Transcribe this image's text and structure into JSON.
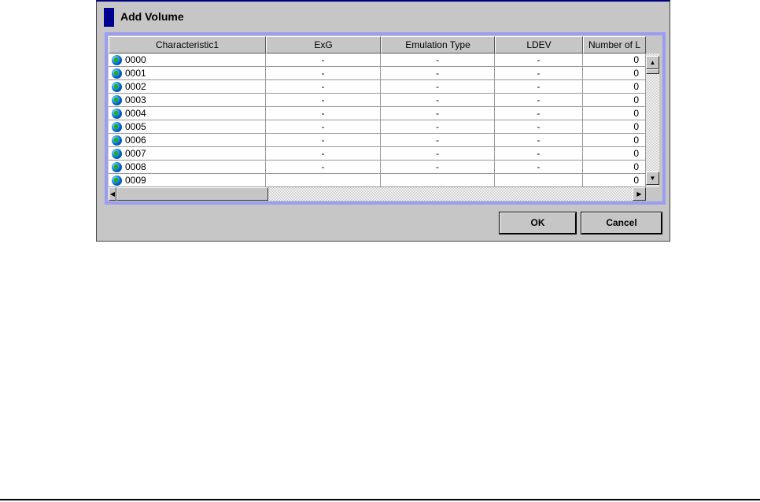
{
  "dialog": {
    "title": "Add Volume"
  },
  "table": {
    "columns": [
      "Characteristic1",
      "ExG",
      "Emulation Type",
      "LDEV",
      "Number of L"
    ],
    "rows": [
      [
        "0000",
        "-",
        "-",
        "-",
        "0"
      ],
      [
        "0001",
        "-",
        "-",
        "-",
        "0"
      ],
      [
        "0002",
        "-",
        "-",
        "-",
        "0"
      ],
      [
        "0003",
        "-",
        "-",
        "-",
        "0"
      ],
      [
        "0004",
        "-",
        "-",
        "-",
        "0"
      ],
      [
        "0005",
        "-",
        "-",
        "-",
        "0"
      ],
      [
        "0006",
        "-",
        "-",
        "-",
        "0"
      ],
      [
        "0007",
        "-",
        "-",
        "-",
        "0"
      ],
      [
        "0008",
        "-",
        "-",
        "-",
        "0"
      ],
      [
        "0009",
        "",
        "",
        "",
        "0"
      ]
    ]
  },
  "buttons": {
    "ok": "OK",
    "cancel": "Cancel"
  },
  "colors": {
    "accent": "#000090",
    "frame": "#9c9cf0"
  }
}
